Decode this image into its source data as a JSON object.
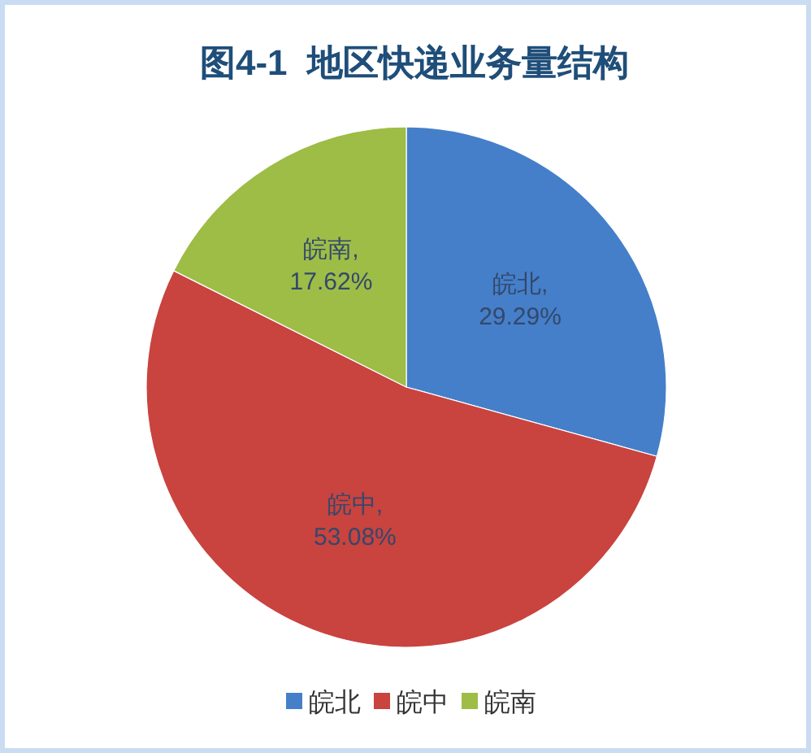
{
  "chart_data": {
    "type": "pie",
    "title": "图4-1  地区快递业务量结构",
    "categories": [
      "皖北",
      "皖中",
      "皖南"
    ],
    "values": [
      29.29,
      53.08,
      17.62
    ],
    "colors": [
      "#457fca",
      "#c9433f",
      "#9dbd47"
    ],
    "value_labels": [
      "皖北,\n29.29%",
      "皖中,\n53.08%",
      "皖南,\n17.62%"
    ],
    "legend": "bottom"
  }
}
